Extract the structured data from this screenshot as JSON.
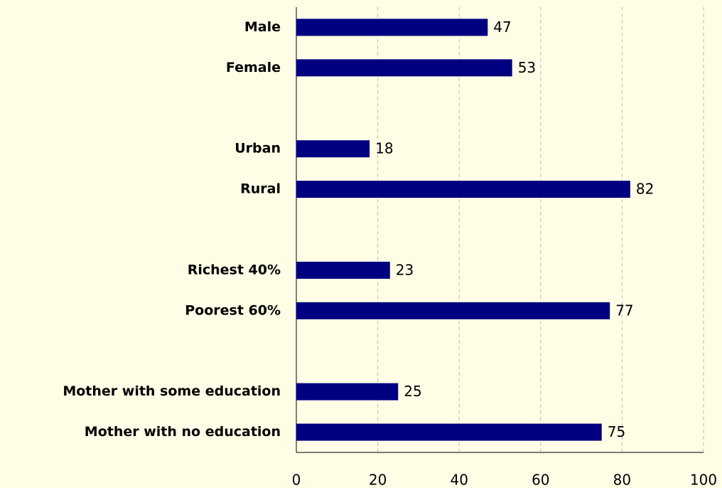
{
  "chart_data": {
    "type": "barh",
    "categories": [
      "Male",
      "Female",
      null,
      "Urban",
      "Rural",
      null,
      "Richest 40%",
      "Poorest 60%",
      null,
      "Mother with some education",
      "Mother with no education"
    ],
    "values": [
      47,
      53,
      null,
      18,
      82,
      null,
      23,
      77,
      null,
      25,
      75
    ],
    "color": "#000080",
    "xlim": [
      0,
      100
    ],
    "xticks": [
      0,
      20,
      40,
      60,
      80,
      100
    ],
    "grid": true
  }
}
